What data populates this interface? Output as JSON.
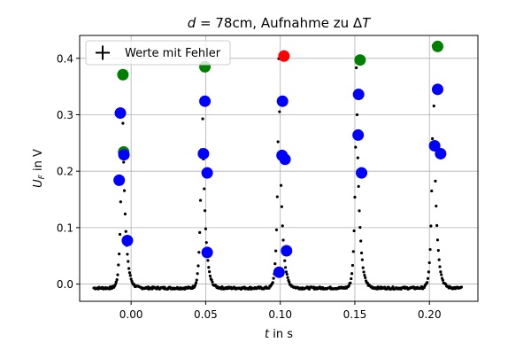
{
  "chart_data": {
    "type": "scatter",
    "title_parts": [
      "d",
      " = 78cm, Aufnahme zu Δ",
      "T"
    ],
    "xlabel_parts": [
      "t",
      " in s"
    ],
    "ylabel_parts": [
      "U",
      "F",
      " in V"
    ],
    "xlim": [
      -0.0345,
      0.2325
    ],
    "ylim": [
      -0.0305,
      0.4405
    ],
    "x_ticks": [
      0.0,
      0.05,
      0.1,
      0.15,
      0.2
    ],
    "x_tick_labels": [
      "0.00",
      "0.05",
      "0.10",
      "0.15",
      "0.20"
    ],
    "y_ticks": [
      0.0,
      0.1,
      0.2,
      0.3,
      0.4
    ],
    "y_tick_labels": [
      "0.0",
      "0.1",
      "0.2",
      "0.3",
      "0.4"
    ],
    "grid": true,
    "legend": {
      "position": "top-left",
      "entries": [
        "Werte mit Fehler"
      ]
    },
    "baseline": -0.007,
    "peaks": [
      {
        "center": -0.006,
        "height": 0.378
      },
      {
        "center": 0.0475,
        "height": 0.385
      },
      {
        "center": 0.099,
        "height": 0.405
      },
      {
        "center": 0.151,
        "height": 0.397
      },
      {
        "center": 0.2025,
        "height": 0.422
      }
    ],
    "sample_step": 0.0005,
    "x_start": -0.025,
    "x_end": 0.222,
    "colors": {
      "samples": "#000000",
      "blue": "#0000ff",
      "green": "#008000",
      "red": "#ff0000"
    },
    "marked_points": [
      {
        "x": -0.0055,
        "y": 0.371,
        "color": "green"
      },
      {
        "x": -0.0072,
        "y": 0.303,
        "color": "blue"
      },
      {
        "x": -0.005,
        "y": 0.234,
        "color": "green"
      },
      {
        "x": -0.0048,
        "y": 0.229,
        "color": "blue"
      },
      {
        "x": -0.008,
        "y": 0.184,
        "color": "blue"
      },
      {
        "x": -0.0025,
        "y": 0.077,
        "color": "blue"
      },
      {
        "x": 0.0495,
        "y": 0.385,
        "color": "green"
      },
      {
        "x": 0.0495,
        "y": 0.324,
        "color": "blue"
      },
      {
        "x": 0.0485,
        "y": 0.231,
        "color": "blue"
      },
      {
        "x": 0.051,
        "y": 0.197,
        "color": "blue"
      },
      {
        "x": 0.051,
        "y": 0.056,
        "color": "blue"
      },
      {
        "x": 0.1025,
        "y": 0.404,
        "color": "red"
      },
      {
        "x": 0.1015,
        "y": 0.324,
        "color": "blue"
      },
      {
        "x": 0.1012,
        "y": 0.228,
        "color": "blue"
      },
      {
        "x": 0.1032,
        "y": 0.221,
        "color": "blue"
      },
      {
        "x": 0.1042,
        "y": 0.059,
        "color": "blue"
      },
      {
        "x": 0.0992,
        "y": 0.021,
        "color": "blue"
      },
      {
        "x": 0.1535,
        "y": 0.397,
        "color": "green"
      },
      {
        "x": 0.1525,
        "y": 0.336,
        "color": "blue"
      },
      {
        "x": 0.1522,
        "y": 0.264,
        "color": "blue"
      },
      {
        "x": 0.1545,
        "y": 0.197,
        "color": "blue"
      },
      {
        "x": 0.2055,
        "y": 0.421,
        "color": "green"
      },
      {
        "x": 0.2055,
        "y": 0.345,
        "color": "blue"
      },
      {
        "x": 0.2035,
        "y": 0.245,
        "color": "blue"
      },
      {
        "x": 0.2075,
        "y": 0.231,
        "color": "blue"
      }
    ]
  }
}
